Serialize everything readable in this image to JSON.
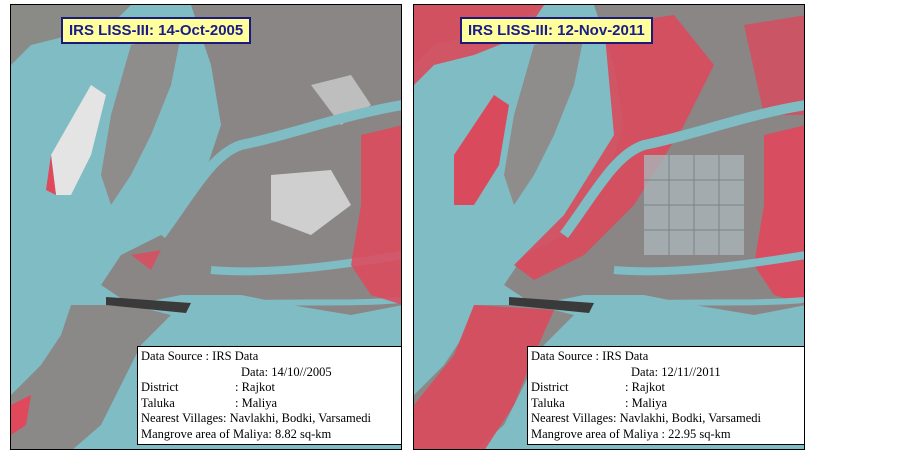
{
  "panels": [
    {
      "title": "IRS LISS-III: 14-Oct-2005",
      "info": {
        "data_source": "Data Source : IRS Data",
        "date": "Data: 14/10//2005",
        "district_label": "District",
        "district_value": ": Rajkot",
        "taluka_label": "Taluka",
        "taluka_value": ": Maliya",
        "villages": "Nearest Villages: Navlakhi, Bodki, Varsamedi",
        "mangrove": "Mangrove area of Maliya: 8.82 sq-km"
      }
    },
    {
      "title": "IRS LISS-III: 12-Nov-2011",
      "info": {
        "data_source": "Data Source : IRS Data",
        "date": "Data: 12/11//2011",
        "district_label": "District",
        "district_value": ": Rajkot",
        "taluka_label": "Taluka",
        "taluka_value": ": Maliya",
        "villages": "Nearest Villages: Navlakhi, Bodki, Varsamedi",
        "mangrove": "Mangrove area of Maliya : 22.95 sq-km"
      }
    }
  ],
  "colors": {
    "water": "#7fbcc4",
    "land": "#8c8c8c",
    "mangrove": "#e0485c",
    "salt_pan": "#e8e8e8"
  }
}
